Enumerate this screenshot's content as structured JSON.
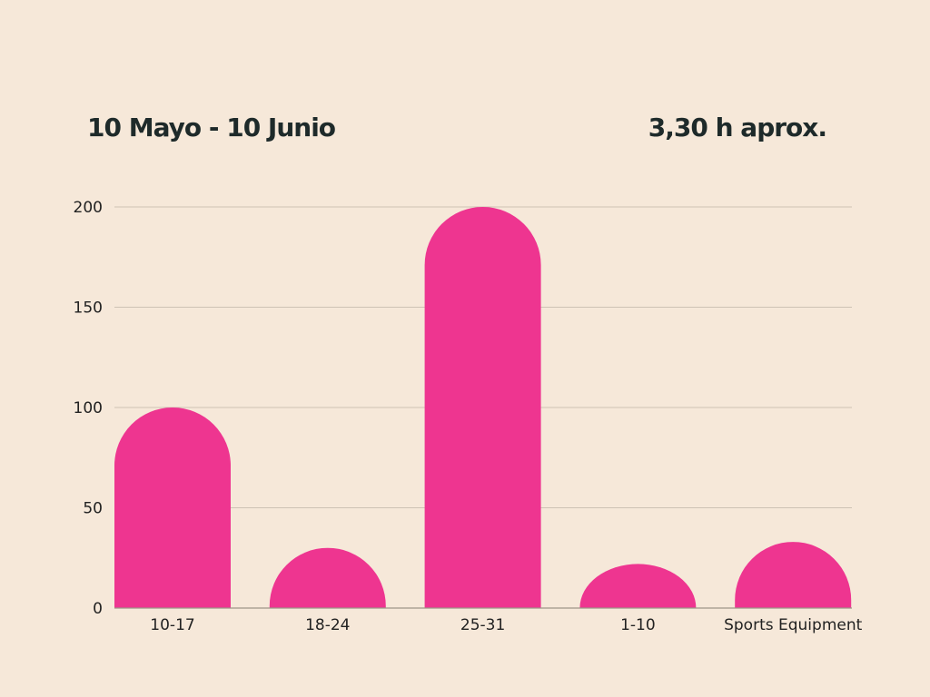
{
  "header": {
    "left": "10 Mayo - 10 Junio",
    "right": "3,30 h aprox."
  },
  "colors": {
    "background": "#f6e8d9",
    "bar": "#ee3590",
    "grid": "#cdc2b4",
    "axis": "#9e9488",
    "text": "#1e2a2a"
  },
  "chart_data": {
    "type": "bar",
    "categories": [
      "10-17",
      "18-24",
      "25-31",
      "1-10",
      "Sports Equipment"
    ],
    "values": [
      100,
      30,
      200,
      22,
      33
    ],
    "title": "",
    "xlabel": "",
    "ylabel": "",
    "ylim": [
      0,
      200
    ],
    "yticks": [
      0,
      50,
      100,
      150,
      200
    ],
    "grid": true,
    "legend": "none",
    "bar_style": "rounded-top"
  }
}
